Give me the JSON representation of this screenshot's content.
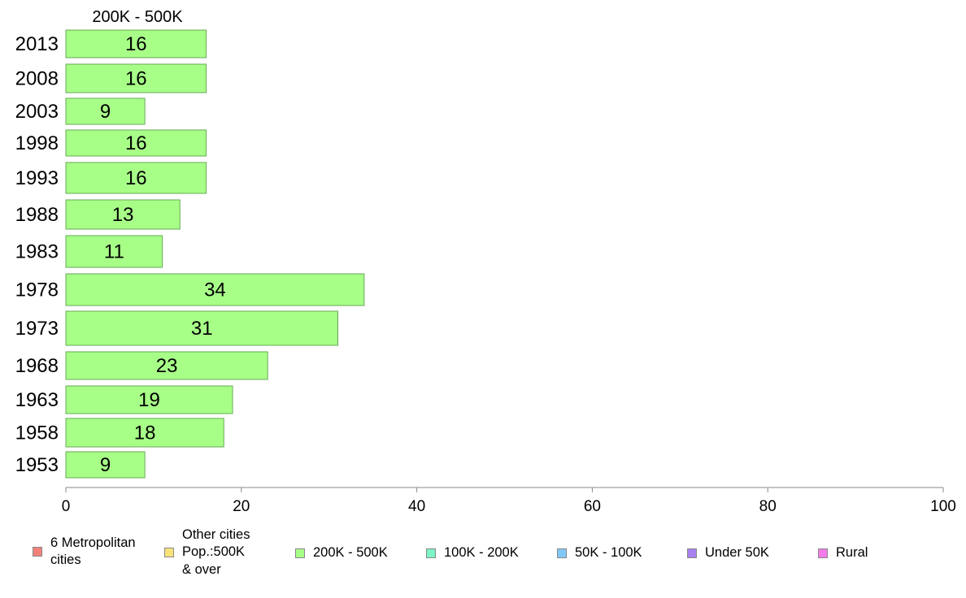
{
  "chart_data": {
    "type": "bar",
    "orientation": "horizontal",
    "title": "200K - 500K",
    "categories": [
      "2013",
      "2008",
      "2003",
      "1998",
      "1993",
      "1988",
      "1983",
      "1978",
      "1973",
      "1968",
      "1963",
      "1958",
      "1953"
    ],
    "values": [
      16,
      16,
      9,
      16,
      16,
      13,
      11,
      34,
      31,
      23,
      19,
      18,
      9
    ],
    "data_labels": [
      "16",
      "16",
      "9",
      "16",
      "16",
      "13",
      "11",
      "34",
      "31",
      "23",
      "19",
      "18",
      "9"
    ],
    "series_color": "#a8ff88",
    "xlim": [
      0,
      100
    ],
    "xticks": [
      0,
      20,
      40,
      60,
      80,
      100
    ],
    "xtick_labels": [
      "0",
      "20",
      "40",
      "60",
      "80",
      "100"
    ],
    "grid": false,
    "legend_position": "bottom"
  },
  "legend": [
    {
      "label": "6 Metropolitan\n cities",
      "color": "#f4807a"
    },
    {
      "label": "Other cities\nPop.:500K\n & over",
      "color": "#f8e27a"
    },
    {
      "label": "200K - 500K",
      "color": "#a8ff88"
    },
    {
      "label": "100K - 200K",
      "color": "#7cf4c4"
    },
    {
      "label": "50K - 100K",
      "color": "#80c8f8"
    },
    {
      "label": "Under 50K",
      "color": "#a880f0"
    },
    {
      "label": "Rural",
      "color": "#f47ce8"
    }
  ]
}
